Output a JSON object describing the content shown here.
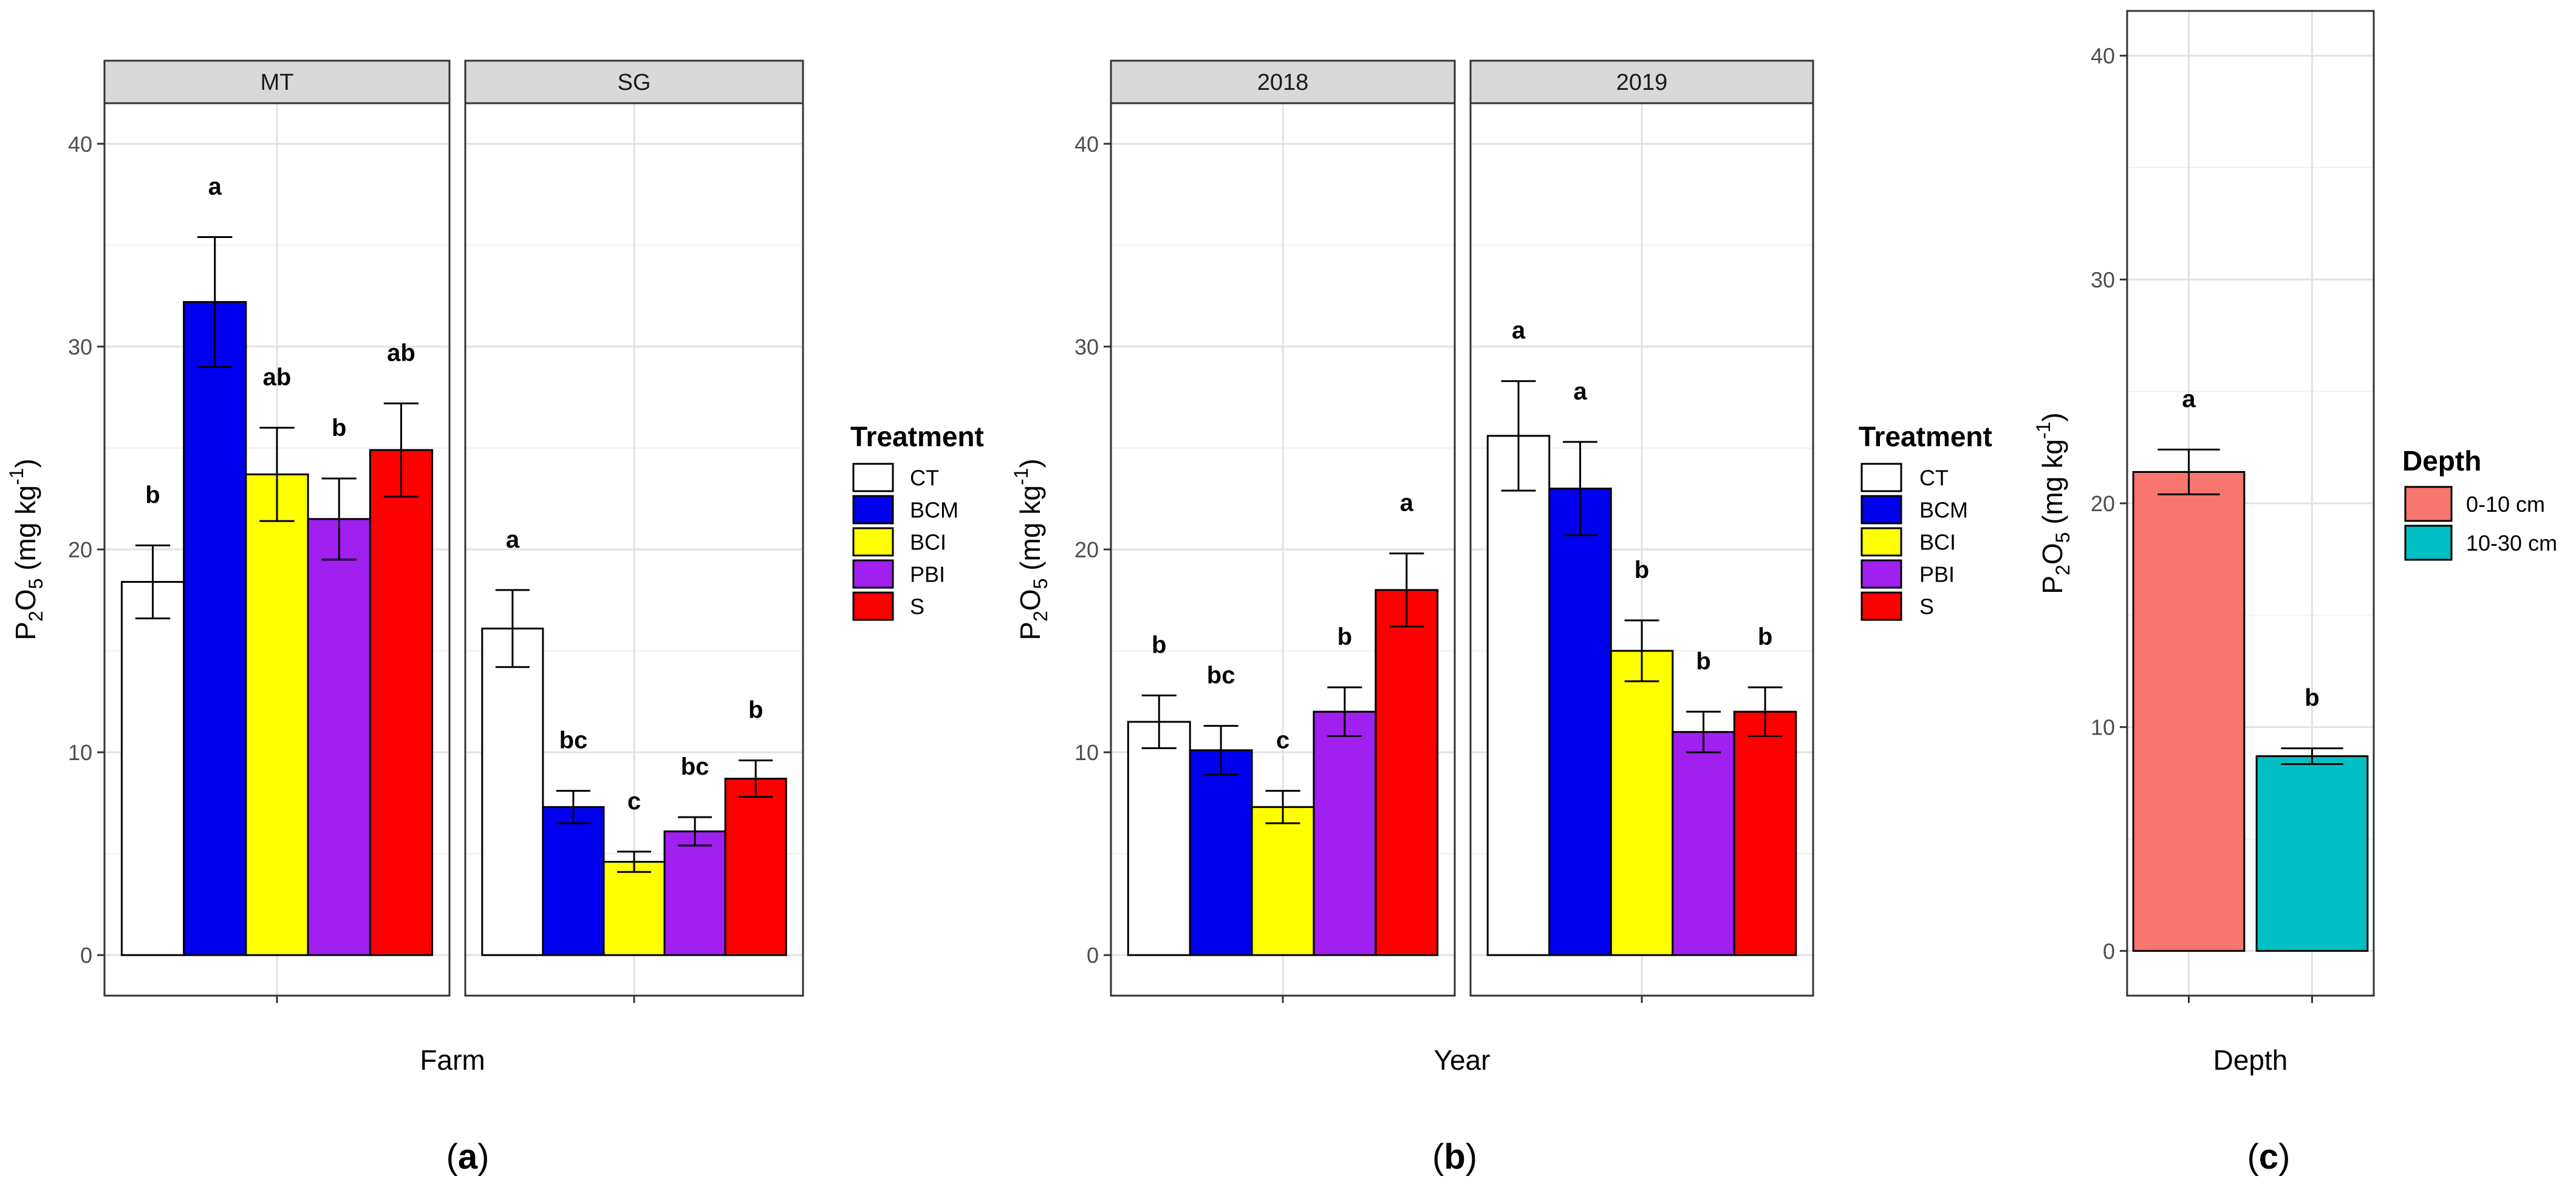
{
  "figure": {
    "panel_labels": [
      {
        "open": "(",
        "letter": "a",
        "close": ")"
      },
      {
        "open": "(",
        "letter": "b",
        "close": ")"
      },
      {
        "open": "(",
        "letter": "c",
        "close": ")"
      }
    ]
  },
  "chart_data": [
    {
      "id": "a",
      "type": "bar",
      "facets": [
        "MT",
        "SG"
      ],
      "xlabel": "Farm",
      "ylabel_parts": [
        "P",
        "2",
        "O",
        "5",
        " (mg kg",
        "-1",
        ")"
      ],
      "ylim": [
        -2,
        42
      ],
      "yticks": [
        "0",
        "10",
        "20",
        "30",
        "40"
      ],
      "ytick_values": [
        0,
        10,
        20,
        30,
        40
      ],
      "categories": [
        "CT",
        "BCM",
        "BCI",
        "PBI",
        "S"
      ],
      "colors": [
        "#ffffff",
        "#0000ee",
        "#ffff00",
        "#a020f0",
        "#ff0000"
      ],
      "legend_title": "Treatment",
      "legend": [
        "CT",
        "BCM",
        "BCI",
        "PBI",
        "S"
      ],
      "groups": [
        {
          "facet": "MT",
          "values": [
            18.4,
            32.2,
            23.7,
            21.5,
            24.9
          ],
          "errors": [
            1.8,
            3.2,
            2.3,
            2.0,
            2.3
          ],
          "letters": [
            "b",
            "a",
            "ab",
            "b",
            "ab"
          ]
        },
        {
          "facet": "SG",
          "values": [
            16.1,
            7.3,
            4.6,
            6.1,
            8.7
          ],
          "errors": [
            1.9,
            0.8,
            0.5,
            0.7,
            0.9
          ],
          "letters": [
            "a",
            "bc",
            "c",
            "bc",
            "b"
          ]
        }
      ]
    },
    {
      "id": "b",
      "type": "bar",
      "facets": [
        "2018",
        "2019"
      ],
      "xlabel": "Year",
      "ylabel_parts": [
        "P",
        "2",
        "O",
        "5",
        " (mg kg",
        "-1",
        ")"
      ],
      "ylim": [
        -2,
        42
      ],
      "yticks": [
        "0",
        "10",
        "20",
        "30",
        "40"
      ],
      "ytick_values": [
        0,
        10,
        20,
        30,
        40
      ],
      "categories": [
        "CT",
        "BCM",
        "BCI",
        "PBI",
        "S"
      ],
      "colors": [
        "#ffffff",
        "#0000ee",
        "#ffff00",
        "#a020f0",
        "#ff0000"
      ],
      "legend_title": "Treatment",
      "legend": [
        "CT",
        "BCM",
        "BCI",
        "PBI",
        "S"
      ],
      "groups": [
        {
          "facet": "2018",
          "values": [
            11.5,
            10.1,
            7.3,
            12.0,
            18.0
          ],
          "errors": [
            1.3,
            1.2,
            0.8,
            1.2,
            1.8
          ],
          "letters": [
            "b",
            "bc",
            "c",
            "b",
            "a"
          ]
        },
        {
          "facet": "2019",
          "values": [
            25.6,
            23.0,
            15.0,
            11.0,
            12.0
          ],
          "errors": [
            2.7,
            2.3,
            1.5,
            1.0,
            1.2
          ],
          "letters": [
            "a",
            "a",
            "b",
            "b",
            "b"
          ]
        }
      ]
    },
    {
      "id": "c",
      "type": "bar",
      "facets": [],
      "xlabel": "Depth",
      "ylabel_parts": [
        "P",
        "2",
        "O",
        "5",
        " (mg kg",
        "-1",
        ")"
      ],
      "ylim": [
        -2,
        42
      ],
      "yticks": [
        "0",
        "10",
        "20",
        "30",
        "40"
      ],
      "ytick_values": [
        0,
        10,
        20,
        30,
        40
      ],
      "categories": [
        "0-10 cm",
        "10-30 cm"
      ],
      "colors": [
        "#f8766d",
        "#00bfc4"
      ],
      "legend_title": "Depth",
      "legend": [
        "0-10 cm",
        "10-30 cm"
      ],
      "groups": [
        {
          "facet": "",
          "values": [
            21.4,
            8.7
          ],
          "errors": [
            1.0,
            0.35
          ],
          "letters": [
            "a",
            "b"
          ]
        }
      ]
    }
  ]
}
